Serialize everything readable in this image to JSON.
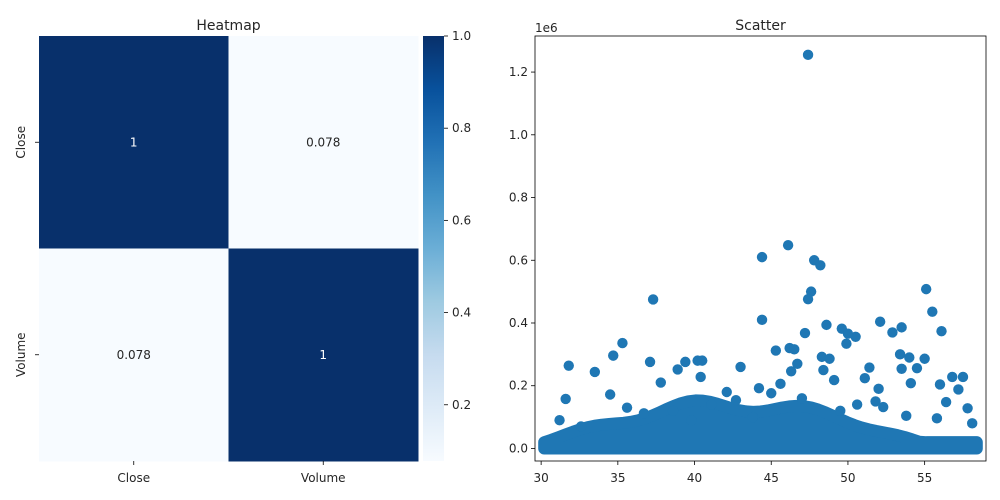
{
  "chart_data": [
    {
      "type": "heatmap",
      "title": "Heatmap",
      "xlabel": "",
      "ylabel": "",
      "x_categories": [
        "Close",
        "Volume"
      ],
      "y_categories": [
        "Close",
        "Volume"
      ],
      "values": [
        [
          1,
          0.078
        ],
        [
          0.078,
          1
        ]
      ],
      "cell_labels": [
        [
          "1",
          "0.078"
        ],
        [
          "0.078",
          "1"
        ]
      ],
      "colormap": "Blues",
      "colorbar": {
        "range": [
          0.078,
          1.0
        ],
        "ticks": [
          0.2,
          0.4,
          0.6,
          0.8,
          1.0
        ],
        "tick_labels": [
          "0.2",
          "0.4",
          "0.6",
          "0.8",
          "1.0"
        ]
      }
    },
    {
      "type": "scatter",
      "title": "Scatter",
      "xlabel": "",
      "ylabel": "",
      "xlim": [
        29.6,
        59.0
      ],
      "ylim": [
        -40000,
        1315000
      ],
      "x_ticks": [
        30,
        35,
        40,
        45,
        50,
        55
      ],
      "x_tick_labels": [
        "30",
        "35",
        "40",
        "45",
        "50",
        "55"
      ],
      "y_ticks": [
        0,
        200000,
        400000,
        600000,
        800000,
        1000000,
        1200000
      ],
      "y_tick_labels": [
        "0.0",
        "0.2",
        "0.4",
        "0.6",
        "0.8",
        "1.0",
        "1.2"
      ],
      "y_offset_text": "1e6",
      "color": "#1f77b4",
      "points": [
        [
          47.4,
          1255000
        ],
        [
          46.1,
          648000
        ],
        [
          47.8,
          600000
        ],
        [
          48.2,
          584000
        ],
        [
          44.4,
          610000
        ],
        [
          55.1,
          508000
        ],
        [
          47.6,
          500000
        ],
        [
          47.4,
          476000
        ],
        [
          37.3,
          475000
        ],
        [
          55.5,
          436000
        ],
        [
          44.4,
          410000
        ],
        [
          52.1,
          404000
        ],
        [
          48.6,
          394000
        ],
        [
          53.5,
          386000
        ],
        [
          49.6,
          382000
        ],
        [
          56.1,
          374000
        ],
        [
          47.2,
          368000
        ],
        [
          50.5,
          356000
        ],
        [
          52.9,
          370000
        ],
        [
          50.0,
          366000
        ],
        [
          46.2,
          320000
        ],
        [
          49.9,
          334000
        ],
        [
          35.3,
          336000
        ],
        [
          53.4,
          300000
        ],
        [
          45.3,
          312000
        ],
        [
          46.5,
          316000
        ],
        [
          34.7,
          296000
        ],
        [
          48.3,
          292000
        ],
        [
          48.8,
          286000
        ],
        [
          46.7,
          270000
        ],
        [
          40.2,
          280000
        ],
        [
          40.5,
          280000
        ],
        [
          39.4,
          276000
        ],
        [
          37.1,
          276000
        ],
        [
          54.0,
          290000
        ],
        [
          55.0,
          286000
        ],
        [
          31.8,
          264000
        ],
        [
          43.0,
          260000
        ],
        [
          51.4,
          258000
        ],
        [
          53.5,
          254000
        ],
        [
          54.5,
          256000
        ],
        [
          33.5,
          244000
        ],
        [
          38.9,
          252000
        ],
        [
          46.3,
          246000
        ],
        [
          48.4,
          250000
        ],
        [
          56.8,
          228000
        ],
        [
          57.5,
          228000
        ],
        [
          40.4,
          228000
        ],
        [
          45.6,
          206000
        ],
        [
          49.1,
          218000
        ],
        [
          51.1,
          224000
        ],
        [
          37.8,
          210000
        ],
        [
          56.0,
          204000
        ],
        [
          44.2,
          192000
        ],
        [
          52.0,
          190000
        ],
        [
          54.1,
          208000
        ],
        [
          42.1,
          180000
        ],
        [
          34.5,
          172000
        ],
        [
          31.6,
          158000
        ],
        [
          57.2,
          188000
        ],
        [
          31.2,
          90000
        ],
        [
          38.6,
          120000
        ],
        [
          41.1,
          140000
        ],
        [
          43.8,
          100000
        ],
        [
          50.6,
          140000
        ],
        [
          52.3,
          132000
        ],
        [
          53.8,
          104000
        ],
        [
          35.6,
          130000
        ],
        [
          32.6,
          70000
        ],
        [
          47.0,
          160000
        ],
        [
          49.5,
          120000
        ],
        [
          51.8,
          150000
        ],
        [
          55.8,
          96000
        ],
        [
          57.8,
          128000
        ],
        [
          58.1,
          80000
        ],
        [
          45.0,
          176000
        ],
        [
          36.7,
          112000
        ],
        [
          39.8,
          90000
        ],
        [
          42.7,
          154000
        ],
        [
          56.4,
          148000
        ]
      ],
      "dense_band": {
        "x_range": [
          30.2,
          58.4
        ],
        "y_min": 0,
        "y_top_start": 20000,
        "y_top_end": 160000
      }
    }
  ]
}
